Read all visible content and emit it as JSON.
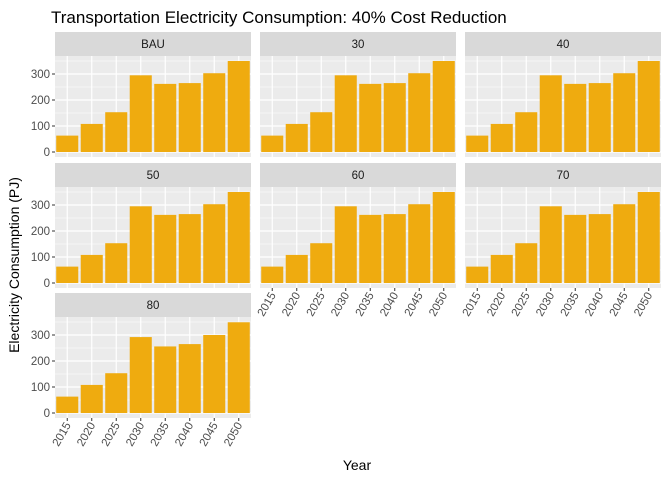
{
  "chart_data": {
    "type": "bar",
    "title": "Transportation Electricity Consumption: 40% Cost Reduction",
    "xlabel": "Year",
    "ylabel": "Electricity Consumption (PJ)",
    "categories": [
      "2015",
      "2020",
      "2025",
      "2030",
      "2035",
      "2040",
      "2045",
      "2050"
    ],
    "ylim": [
      0,
      360
    ],
    "yticks": [
      "0",
      "100",
      "200",
      "300"
    ],
    "bar_color": "#EFAB0F",
    "panel_background": "#EBEBEB",
    "strip_background": "#D9D9D9",
    "grid": true,
    "facets": [
      {
        "label": "BAU",
        "values": [
          63,
          108,
          153,
          295,
          262,
          265,
          303,
          350
        ]
      },
      {
        "label": "30",
        "values": [
          63,
          108,
          153,
          295,
          262,
          265,
          303,
          350
        ]
      },
      {
        "label": "40",
        "values": [
          63,
          108,
          153,
          295,
          262,
          265,
          303,
          350
        ]
      },
      {
        "label": "50",
        "values": [
          63,
          108,
          153,
          295,
          262,
          265,
          303,
          350
        ]
      },
      {
        "label": "60",
        "values": [
          63,
          108,
          153,
          295,
          262,
          265,
          303,
          350
        ]
      },
      {
        "label": "70",
        "values": [
          63,
          108,
          153,
          295,
          262,
          265,
          303,
          350
        ]
      },
      {
        "label": "80",
        "values": [
          63,
          108,
          153,
          292,
          256,
          265,
          300,
          349
        ]
      }
    ]
  }
}
